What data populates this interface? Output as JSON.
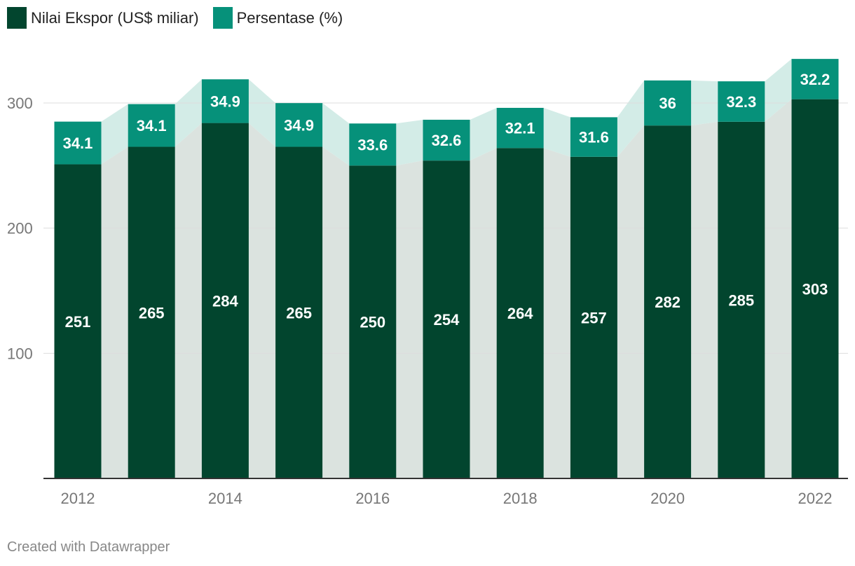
{
  "legend": {
    "series1": "Nilai Ekspor (US$ miliar)",
    "series2": "Persentase (%)"
  },
  "credit": "Created with Datawrapper",
  "colors": {
    "value_bar": "#02452e",
    "percent_bar": "#06917a",
    "value_area": "#dbe3df",
    "percent_area": "#d3ece7",
    "grid": "#dddddd",
    "axis": "#333333"
  },
  "chart_data": {
    "type": "bar",
    "stacked": true,
    "years": [
      "2012",
      "2013",
      "2014",
      "2015",
      "2016",
      "2017",
      "2018",
      "2019",
      "2020",
      "2021",
      "2022"
    ],
    "tick_labels": [
      "2012",
      "2014",
      "2016",
      "2018",
      "2020",
      "2022"
    ],
    "y_ticks": [
      100,
      200,
      300
    ],
    "ylim": [
      0,
      335
    ],
    "series": [
      {
        "name": "Nilai Ekspor (US$ miliar)",
        "values": [
          251,
          265,
          284,
          265,
          250,
          254,
          264,
          257,
          282,
          285,
          303
        ]
      },
      {
        "name": "Persentase (%)",
        "values": [
          34.1,
          34.1,
          34.9,
          34.9,
          33.6,
          32.6,
          32.1,
          31.6,
          36,
          32.3,
          32.2
        ]
      }
    ],
    "labels": {
      "value": [
        "251",
        "265",
        "284",
        "265",
        "250",
        "254",
        "264",
        "257",
        "282",
        "285",
        "303"
      ],
      "percent": [
        "34.1",
        "34.1",
        "34.9",
        "34.9",
        "33.6",
        "32.6",
        "32.1",
        "31.6",
        "36",
        "32.3",
        "32.2"
      ]
    }
  }
}
